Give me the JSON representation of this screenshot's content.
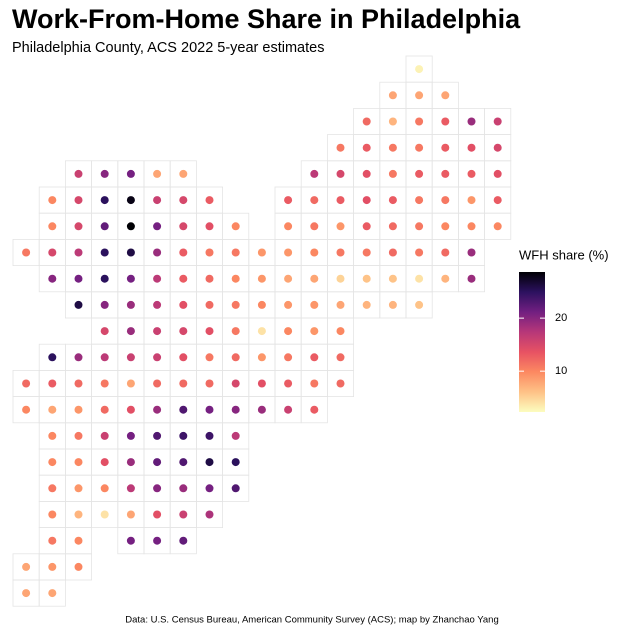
{
  "chart_data": {
    "type": "tile-map",
    "title": "Work-From-Home Share in Philadelphia",
    "subtitle": "Philadelphia County, ACS 2022 5-year estimates",
    "caption": "Data: U.S. Census Bureau, American Community Survey (ACS); map by Zhanchao Yang",
    "legend_title": "WFH share (%)",
    "clim": [
      2.3,
      28.7
    ],
    "cticks": [
      10,
      20
    ],
    "palette": [
      "#fcfdbf",
      "#fec287",
      "#fc8961",
      "#e75263",
      "#b73779",
      "#721f81",
      "#2c115f",
      "#000004"
    ],
    "cells": [
      [
        15,
        0,
        3
      ],
      [
        14,
        1,
        8
      ],
      [
        15,
        1,
        8
      ],
      [
        16,
        1,
        8
      ],
      [
        13,
        2,
        12
      ],
      [
        14,
        2,
        7
      ],
      [
        15,
        2,
        11
      ],
      [
        16,
        2,
        13
      ],
      [
        17,
        2,
        19
      ],
      [
        18,
        2,
        16
      ],
      [
        12,
        3,
        11
      ],
      [
        13,
        3,
        13
      ],
      [
        14,
        3,
        11
      ],
      [
        15,
        3,
        11
      ],
      [
        16,
        3,
        13
      ],
      [
        17,
        3,
        14
      ],
      [
        18,
        3,
        15
      ],
      [
        2,
        4,
        16
      ],
      [
        3,
        4,
        20
      ],
      [
        4,
        4,
        21
      ],
      [
        5,
        4,
        8
      ],
      [
        6,
        4,
        8
      ],
      [
        11,
        4,
        17
      ],
      [
        12,
        4,
        15
      ],
      [
        13,
        4,
        14
      ],
      [
        14,
        4,
        11
      ],
      [
        15,
        4,
        13
      ],
      [
        16,
        4,
        13
      ],
      [
        17,
        4,
        13
      ],
      [
        18,
        4,
        14
      ],
      [
        1,
        5,
        10
      ],
      [
        2,
        5,
        15
      ],
      [
        3,
        5,
        25
      ],
      [
        4,
        5,
        28
      ],
      [
        5,
        5,
        16
      ],
      [
        6,
        5,
        15
      ],
      [
        7,
        5,
        13
      ],
      [
        10,
        5,
        13
      ],
      [
        11,
        5,
        12
      ],
      [
        12,
        5,
        13
      ],
      [
        13,
        5,
        14
      ],
      [
        14,
        5,
        13
      ],
      [
        15,
        5,
        11
      ],
      [
        16,
        5,
        11
      ],
      [
        17,
        5,
        9
      ],
      [
        18,
        5,
        13
      ],
      [
        1,
        6,
        10
      ],
      [
        2,
        6,
        15
      ],
      [
        3,
        6,
        22
      ],
      [
        4,
        6,
        29
      ],
      [
        5,
        6,
        21
      ],
      [
        6,
        6,
        15
      ],
      [
        7,
        6,
        14
      ],
      [
        8,
        6,
        10
      ],
      [
        10,
        6,
        10
      ],
      [
        11,
        6,
        11
      ],
      [
        12,
        6,
        9
      ],
      [
        13,
        6,
        13
      ],
      [
        14,
        6,
        12
      ],
      [
        15,
        6,
        11
      ],
      [
        16,
        6,
        10
      ],
      [
        17,
        6,
        10
      ],
      [
        18,
        6,
        10
      ],
      [
        0,
        7,
        11
      ],
      [
        1,
        7,
        15
      ],
      [
        2,
        7,
        17
      ],
      [
        3,
        7,
        25
      ],
      [
        4,
        7,
        26
      ],
      [
        5,
        7,
        19
      ],
      [
        6,
        7,
        13
      ],
      [
        7,
        7,
        11
      ],
      [
        8,
        7,
        11
      ],
      [
        9,
        7,
        9
      ],
      [
        10,
        7,
        9
      ],
      [
        11,
        7,
        10
      ],
      [
        12,
        7,
        11
      ],
      [
        13,
        7,
        11
      ],
      [
        14,
        7,
        12
      ],
      [
        15,
        7,
        11
      ],
      [
        16,
        7,
        12
      ],
      [
        17,
        7,
        19
      ],
      [
        1,
        8,
        20
      ],
      [
        2,
        8,
        21
      ],
      [
        3,
        8,
        25
      ],
      [
        4,
        8,
        21
      ],
      [
        5,
        8,
        17
      ],
      [
        6,
        8,
        13
      ],
      [
        7,
        8,
        12
      ],
      [
        8,
        8,
        10
      ],
      [
        9,
        8,
        9
      ],
      [
        10,
        8,
        8
      ],
      [
        11,
        8,
        8
      ],
      [
        12,
        8,
        5
      ],
      [
        13,
        8,
        6
      ],
      [
        14,
        8,
        6
      ],
      [
        15,
        8,
        4
      ],
      [
        16,
        8,
        7
      ],
      [
        17,
        8,
        19
      ],
      [
        2,
        9,
        26
      ],
      [
        3,
        9,
        20
      ],
      [
        4,
        9,
        19
      ],
      [
        5,
        9,
        17
      ],
      [
        6,
        9,
        14
      ],
      [
        7,
        9,
        12
      ],
      [
        8,
        9,
        11
      ],
      [
        9,
        9,
        10
      ],
      [
        10,
        9,
        9
      ],
      [
        11,
        9,
        9
      ],
      [
        12,
        9,
        8
      ],
      [
        13,
        9,
        7
      ],
      [
        14,
        9,
        7
      ],
      [
        15,
        9,
        6
      ],
      [
        3,
        10,
        15
      ],
      [
        4,
        10,
        19
      ],
      [
        5,
        10,
        16
      ],
      [
        6,
        10,
        15
      ],
      [
        7,
        10,
        14
      ],
      [
        8,
        10,
        11
      ],
      [
        9,
        10,
        4
      ],
      [
        10,
        10,
        10
      ],
      [
        11,
        10,
        9
      ],
      [
        12,
        10,
        10
      ],
      [
        1,
        11,
        25
      ],
      [
        2,
        11,
        19
      ],
      [
        3,
        11,
        17
      ],
      [
        4,
        11,
        16
      ],
      [
        5,
        11,
        16
      ],
      [
        6,
        11,
        14
      ],
      [
        7,
        11,
        11
      ],
      [
        8,
        11,
        12
      ],
      [
        9,
        11,
        9
      ],
      [
        10,
        11,
        11
      ],
      [
        11,
        11,
        13
      ],
      [
        12,
        11,
        12
      ],
      [
        0,
        12,
        12
      ],
      [
        1,
        12,
        13
      ],
      [
        2,
        12,
        12
      ],
      [
        3,
        12,
        11
      ],
      [
        4,
        12,
        8
      ],
      [
        5,
        12,
        12
      ],
      [
        6,
        12,
        12
      ],
      [
        7,
        12,
        12
      ],
      [
        8,
        12,
        15
      ],
      [
        9,
        12,
        14
      ],
      [
        10,
        12,
        13
      ],
      [
        11,
        12,
        11
      ],
      [
        12,
        12,
        12
      ],
      [
        0,
        13,
        10
      ],
      [
        1,
        13,
        8
      ],
      [
        2,
        13,
        9
      ],
      [
        3,
        13,
        12
      ],
      [
        4,
        13,
        14
      ],
      [
        5,
        13,
        19
      ],
      [
        6,
        13,
        23
      ],
      [
        7,
        13,
        21
      ],
      [
        8,
        13,
        20
      ],
      [
        9,
        13,
        19
      ],
      [
        10,
        13,
        16
      ],
      [
        11,
        13,
        13
      ],
      [
        1,
        14,
        10
      ],
      [
        2,
        14,
        11
      ],
      [
        3,
        14,
        16
      ],
      [
        4,
        14,
        21
      ],
      [
        5,
        14,
        23
      ],
      [
        6,
        14,
        24
      ],
      [
        7,
        14,
        24
      ],
      [
        8,
        14,
        17
      ],
      [
        1,
        15,
        10
      ],
      [
        2,
        15,
        10
      ],
      [
        3,
        15,
        14
      ],
      [
        4,
        15,
        19
      ],
      [
        5,
        15,
        22
      ],
      [
        6,
        15,
        23
      ],
      [
        7,
        15,
        26
      ],
      [
        8,
        15,
        25
      ],
      [
        1,
        16,
        11
      ],
      [
        2,
        16,
        9
      ],
      [
        3,
        16,
        10
      ],
      [
        4,
        16,
        17
      ],
      [
        5,
        16,
        20
      ],
      [
        6,
        16,
        19
      ],
      [
        7,
        16,
        21
      ],
      [
        8,
        16,
        23
      ],
      [
        1,
        17,
        10
      ],
      [
        2,
        17,
        7
      ],
      [
        3,
        17,
        4
      ],
      [
        4,
        17,
        8
      ],
      [
        5,
        17,
        14
      ],
      [
        6,
        17,
        16
      ],
      [
        7,
        17,
        18
      ],
      [
        1,
        18,
        11
      ],
      [
        2,
        18,
        10
      ],
      [
        4,
        18,
        21
      ],
      [
        5,
        18,
        21
      ],
      [
        6,
        18,
        22
      ],
      [
        0,
        19,
        8
      ],
      [
        1,
        19,
        9
      ],
      [
        2,
        19,
        10
      ],
      [
        0,
        20,
        8
      ],
      [
        1,
        20,
        8
      ]
    ]
  }
}
